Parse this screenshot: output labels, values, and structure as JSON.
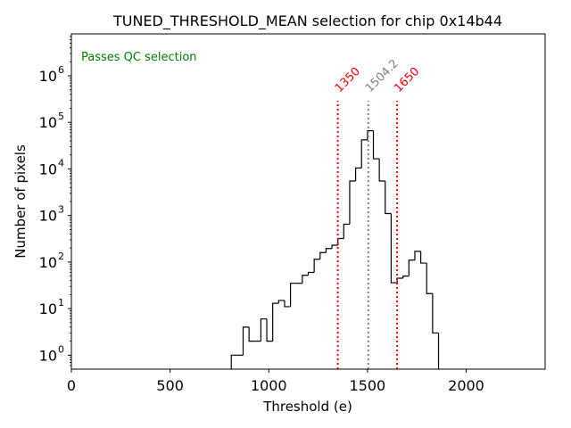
{
  "chart_data": {
    "type": "histogram",
    "title": "TUNED_THRESHOLD_MEAN selection for chip 0x14b44",
    "xlabel": "Threshold (e)",
    "ylabel": "Number of pixels",
    "xlim": [
      0,
      2400
    ],
    "ylim_log10": [
      -0.3,
      6.9
    ],
    "xscale": "linear",
    "yscale": "log",
    "xticks": [
      0,
      500,
      1000,
      1500,
      2000
    ],
    "xtick_labels": [
      "0",
      "500",
      "1000",
      "1500",
      "2000"
    ],
    "yticks_exp": [
      0,
      1,
      2,
      3,
      4,
      5,
      6
    ],
    "ytick_labels": [
      {
        "base": "10",
        "exp": "0"
      },
      {
        "base": "10",
        "exp": "1"
      },
      {
        "base": "10",
        "exp": "2"
      },
      {
        "base": "10",
        "exp": "3"
      },
      {
        "base": "10",
        "exp": "4"
      },
      {
        "base": "10",
        "exp": "5"
      },
      {
        "base": "10",
        "exp": "6"
      }
    ],
    "bin_width": 30,
    "bins": [
      {
        "x0": 810,
        "count": 1
      },
      {
        "x0": 840,
        "count": 1
      },
      {
        "x0": 870,
        "count": 4
      },
      {
        "x0": 900,
        "count": 2
      },
      {
        "x0": 930,
        "count": 2
      },
      {
        "x0": 960,
        "count": 6
      },
      {
        "x0": 990,
        "count": 2
      },
      {
        "x0": 1020,
        "count": 13
      },
      {
        "x0": 1050,
        "count": 15
      },
      {
        "x0": 1080,
        "count": 11
      },
      {
        "x0": 1110,
        "count": 35
      },
      {
        "x0": 1140,
        "count": 35
      },
      {
        "x0": 1170,
        "count": 52
      },
      {
        "x0": 1200,
        "count": 60
      },
      {
        "x0": 1230,
        "count": 115
      },
      {
        "x0": 1260,
        "count": 160
      },
      {
        "x0": 1290,
        "count": 195
      },
      {
        "x0": 1320,
        "count": 230
      },
      {
        "x0": 1350,
        "count": 320
      },
      {
        "x0": 1380,
        "count": 650
      },
      {
        "x0": 1410,
        "count": 5500
      },
      {
        "x0": 1440,
        "count": 10500
      },
      {
        "x0": 1470,
        "count": 42000
      },
      {
        "x0": 1500,
        "count": 66000
      },
      {
        "x0": 1530,
        "count": 16500
      },
      {
        "x0": 1560,
        "count": 5500
      },
      {
        "x0": 1590,
        "count": 1100
      },
      {
        "x0": 1620,
        "count": 36
      },
      {
        "x0": 1650,
        "count": 45
      },
      {
        "x0": 1680,
        "count": 50
      },
      {
        "x0": 1710,
        "count": 110
      },
      {
        "x0": 1740,
        "count": 170
      },
      {
        "x0": 1770,
        "count": 95
      },
      {
        "x0": 1800,
        "count": 21
      },
      {
        "x0": 1830,
        "count": 3
      }
    ],
    "vlines": [
      {
        "x": 1350,
        "label": "1350",
        "color": "#ff0000"
      },
      {
        "x": 1504.2,
        "label": "1504.2",
        "color": "#808080"
      },
      {
        "x": 1650,
        "label": "1650",
        "color": "#ff0000"
      }
    ],
    "annotation": {
      "text": "Passes QC selection",
      "color": "#008000",
      "placement": "top-left"
    },
    "line_color": "#000000"
  }
}
